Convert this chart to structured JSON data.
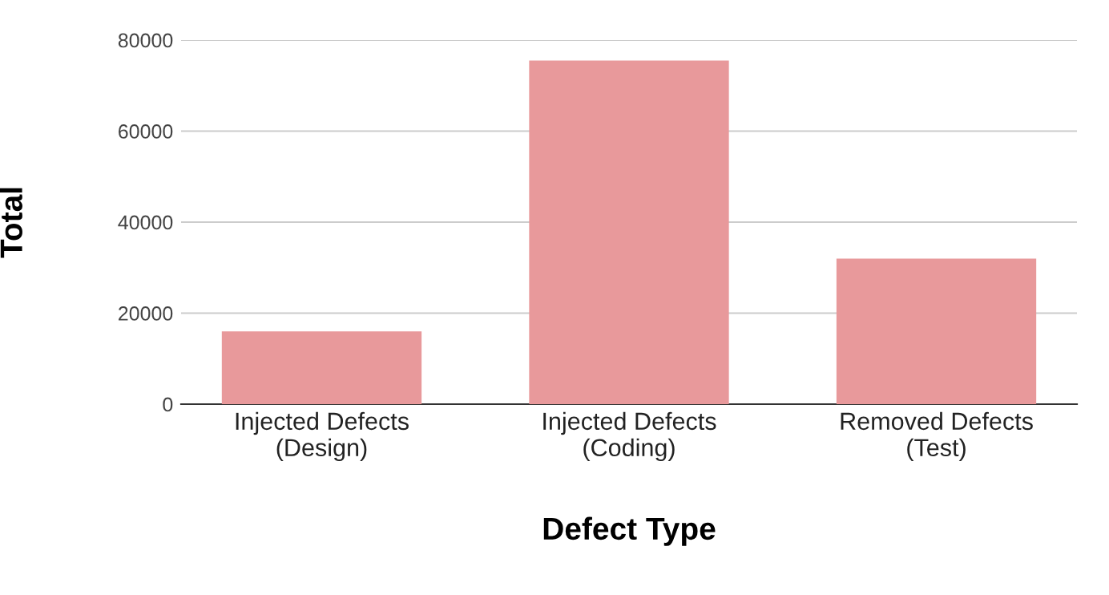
{
  "chart_data": {
    "type": "bar",
    "xlabel": "Defect Type",
    "ylabel": "Total",
    "categories": [
      "Injected Defects\n(Design)",
      "Injected Defects\n(Coding)",
      "Removed Defects\n(Test)"
    ],
    "values": [
      16000,
      75500,
      32000
    ],
    "color": "#e8999b",
    "ylim": [
      0,
      80000
    ],
    "yticks": [
      0,
      20000,
      40000,
      60000,
      80000
    ],
    "grid": "y",
    "legend": false
  }
}
